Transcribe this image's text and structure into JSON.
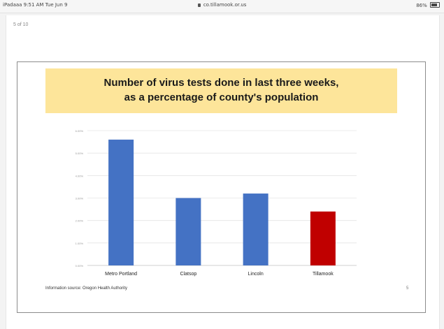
{
  "status_bar": {
    "left_text": "iPadaaa 9:51 AM Tue Jun 9",
    "url": "co.tillamook.or.us",
    "battery_text": "86%"
  },
  "viewer": {
    "page_counter": "5 of 10"
  },
  "slide": {
    "title_line_1": "Number of virus tests done in last three weeks,",
    "title_line_2": "as a percentage of county's population",
    "source_note": "Information source: Oregon Health Authority",
    "slide_number": "5"
  },
  "colors": {
    "banner": "#fde59a",
    "bar_blue": "#4472c4",
    "bar_red": "#c00000"
  },
  "chart_data": {
    "type": "bar",
    "title": "Number of virus tests done in last three weeks, as a percentage of county's population",
    "categories": [
      "Metro Portland",
      "Clatsop",
      "Lincoln",
      "Tillamook"
    ],
    "values": [
      5.6,
      3.0,
      3.2,
      2.4
    ],
    "bar_colors": [
      "#4472c4",
      "#4472c4",
      "#4472c4",
      "#c00000"
    ],
    "y_ticks": [
      "0.00%",
      "1.00%",
      "2.00%",
      "3.00%",
      "4.00%",
      "5.00%",
      "6.00%"
    ],
    "ylim": [
      0,
      6
    ],
    "grid": true,
    "legend": "none"
  }
}
